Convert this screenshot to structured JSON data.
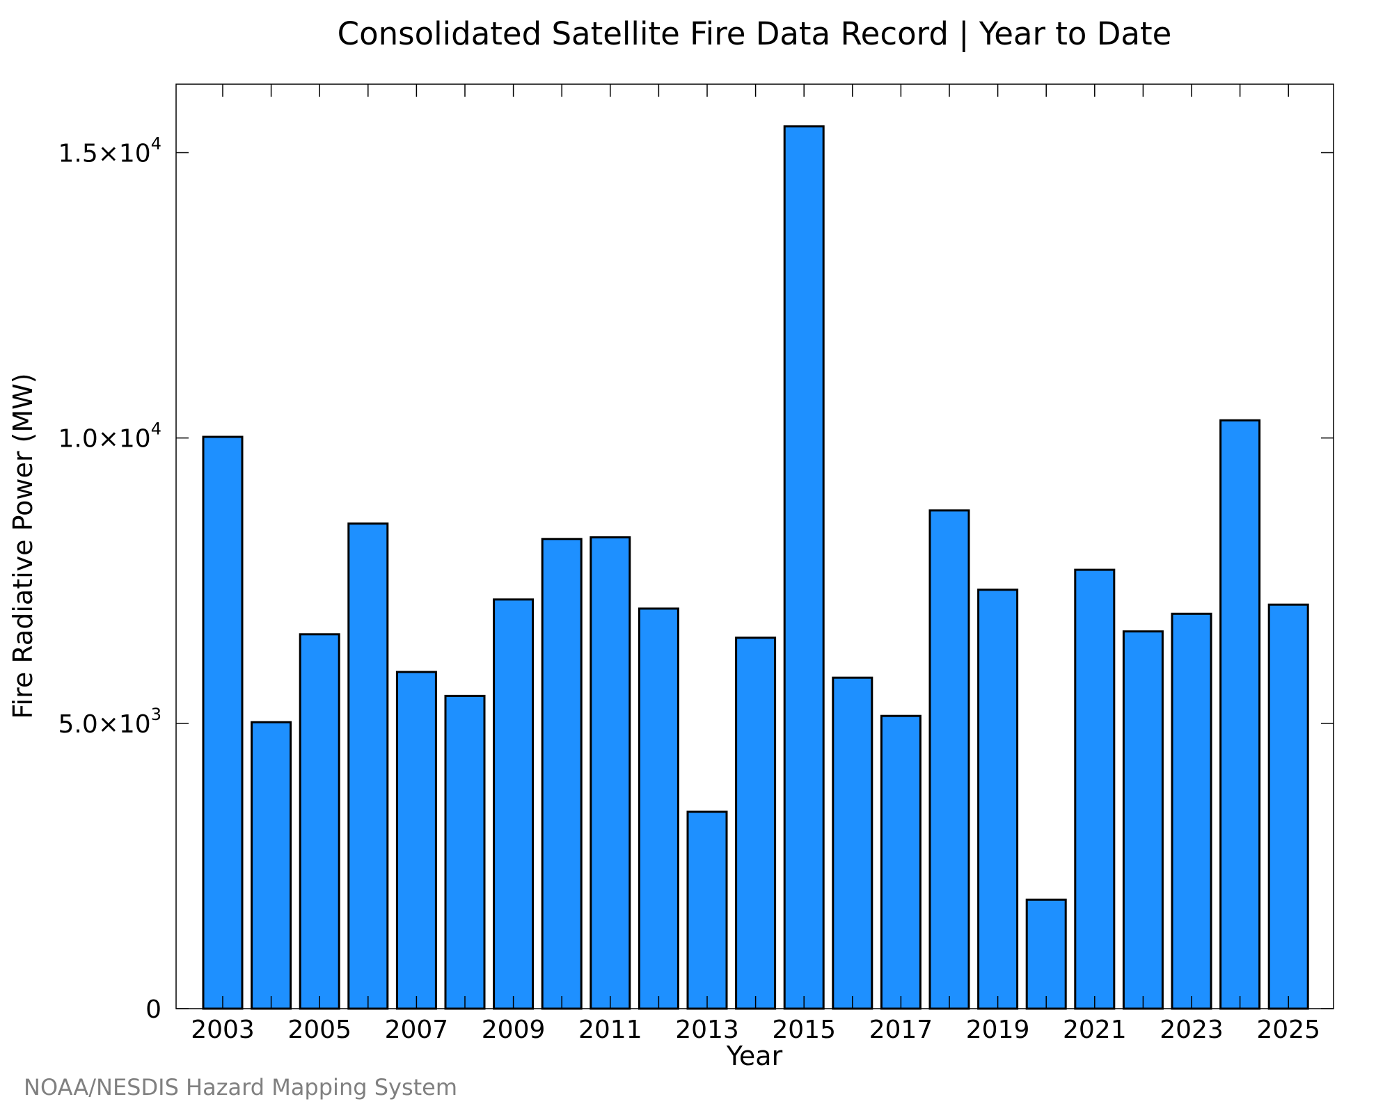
{
  "chart_data": {
    "type": "bar",
    "title": "Consolidated Satellite Fire Data Record | Year to Date",
    "xlabel": "Year",
    "ylabel": "Fire Radiative Power (MW)",
    "categories": [
      "2003",
      "2004",
      "2005",
      "2006",
      "2007",
      "2008",
      "2009",
      "2010",
      "2011",
      "2012",
      "2013",
      "2014",
      "2015",
      "2016",
      "2017",
      "2018",
      "2019",
      "2020",
      "2021",
      "2022",
      "2023",
      "2024",
      "2025"
    ],
    "values": [
      10020,
      5020,
      6560,
      8500,
      5900,
      5480,
      7170,
      8230,
      8260,
      7010,
      3450,
      6500,
      15460,
      5800,
      5130,
      8730,
      7340,
      1910,
      7690,
      6610,
      6920,
      10310,
      7080
    ],
    "x_tick_labels": [
      "2003",
      "2005",
      "2007",
      "2009",
      "2011",
      "2013",
      "2015",
      "2017",
      "2019",
      "2021",
      "2023",
      "2025"
    ],
    "y_ticks": [
      {
        "value": 0,
        "mantissa": "0",
        "exponent": ""
      },
      {
        "value": 5000,
        "mantissa": "5.0×10",
        "exponent": "3"
      },
      {
        "value": 10000,
        "mantissa": "1.0×10",
        "exponent": "4"
      },
      {
        "value": 15000,
        "mantissa": "1.5×10",
        "exponent": "4"
      }
    ],
    "ylim": [
      0,
      16200
    ],
    "grid": false,
    "bar_color": "#1e90ff",
    "bar_edge_color": "#000000"
  },
  "credit": "NOAA/NESDIS Hazard Mapping System"
}
